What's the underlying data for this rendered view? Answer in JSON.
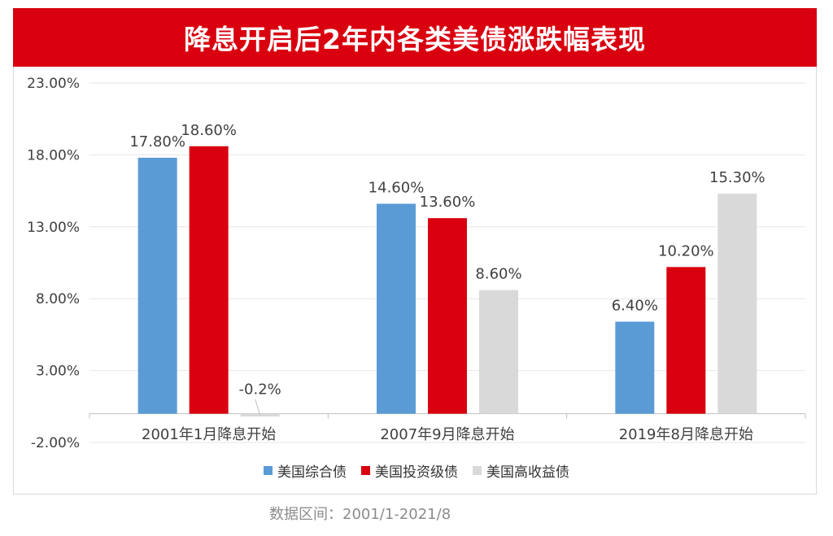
{
  "title": "降息开启后2年内各类美债涨跌幅表现",
  "source_note": "数据区间：2001/1-2021/8",
  "colors": {
    "title_bg": "#d9000f",
    "series_1": "#5b9bd5",
    "series_2": "#d9000f",
    "series_3": "#d9d9d9"
  },
  "chart_data": {
    "type": "bar",
    "title": "降息开启后2年内各类美债涨跌幅表现",
    "categories": [
      "2001年1月降息开始",
      "2007年9月降息开始",
      "2019年8月降息开始"
    ],
    "series": [
      {
        "name": "美国综合债",
        "values": [
          17.8,
          14.6,
          6.4
        ],
        "labels": [
          "17.80%",
          "14.60%",
          "6.40%"
        ]
      },
      {
        "name": "美国投资级债",
        "values": [
          18.6,
          13.6,
          10.2
        ],
        "labels": [
          "18.60%",
          "13.60%",
          "10.20%"
        ]
      },
      {
        "name": "美国高收益债",
        "values": [
          -0.2,
          8.6,
          15.3
        ],
        "labels": [
          "-0.2%",
          "8.60%",
          "15.30%"
        ]
      }
    ],
    "ylim": [
      -2,
      23
    ],
    "yticks": [
      23,
      18,
      13,
      8,
      3,
      -2
    ],
    "ytick_labels": [
      "23.00%",
      "18.00%",
      "13.00%",
      "8.00%",
      "3.00%",
      "-2.00%"
    ],
    "grid": true,
    "legend_position": "bottom"
  }
}
